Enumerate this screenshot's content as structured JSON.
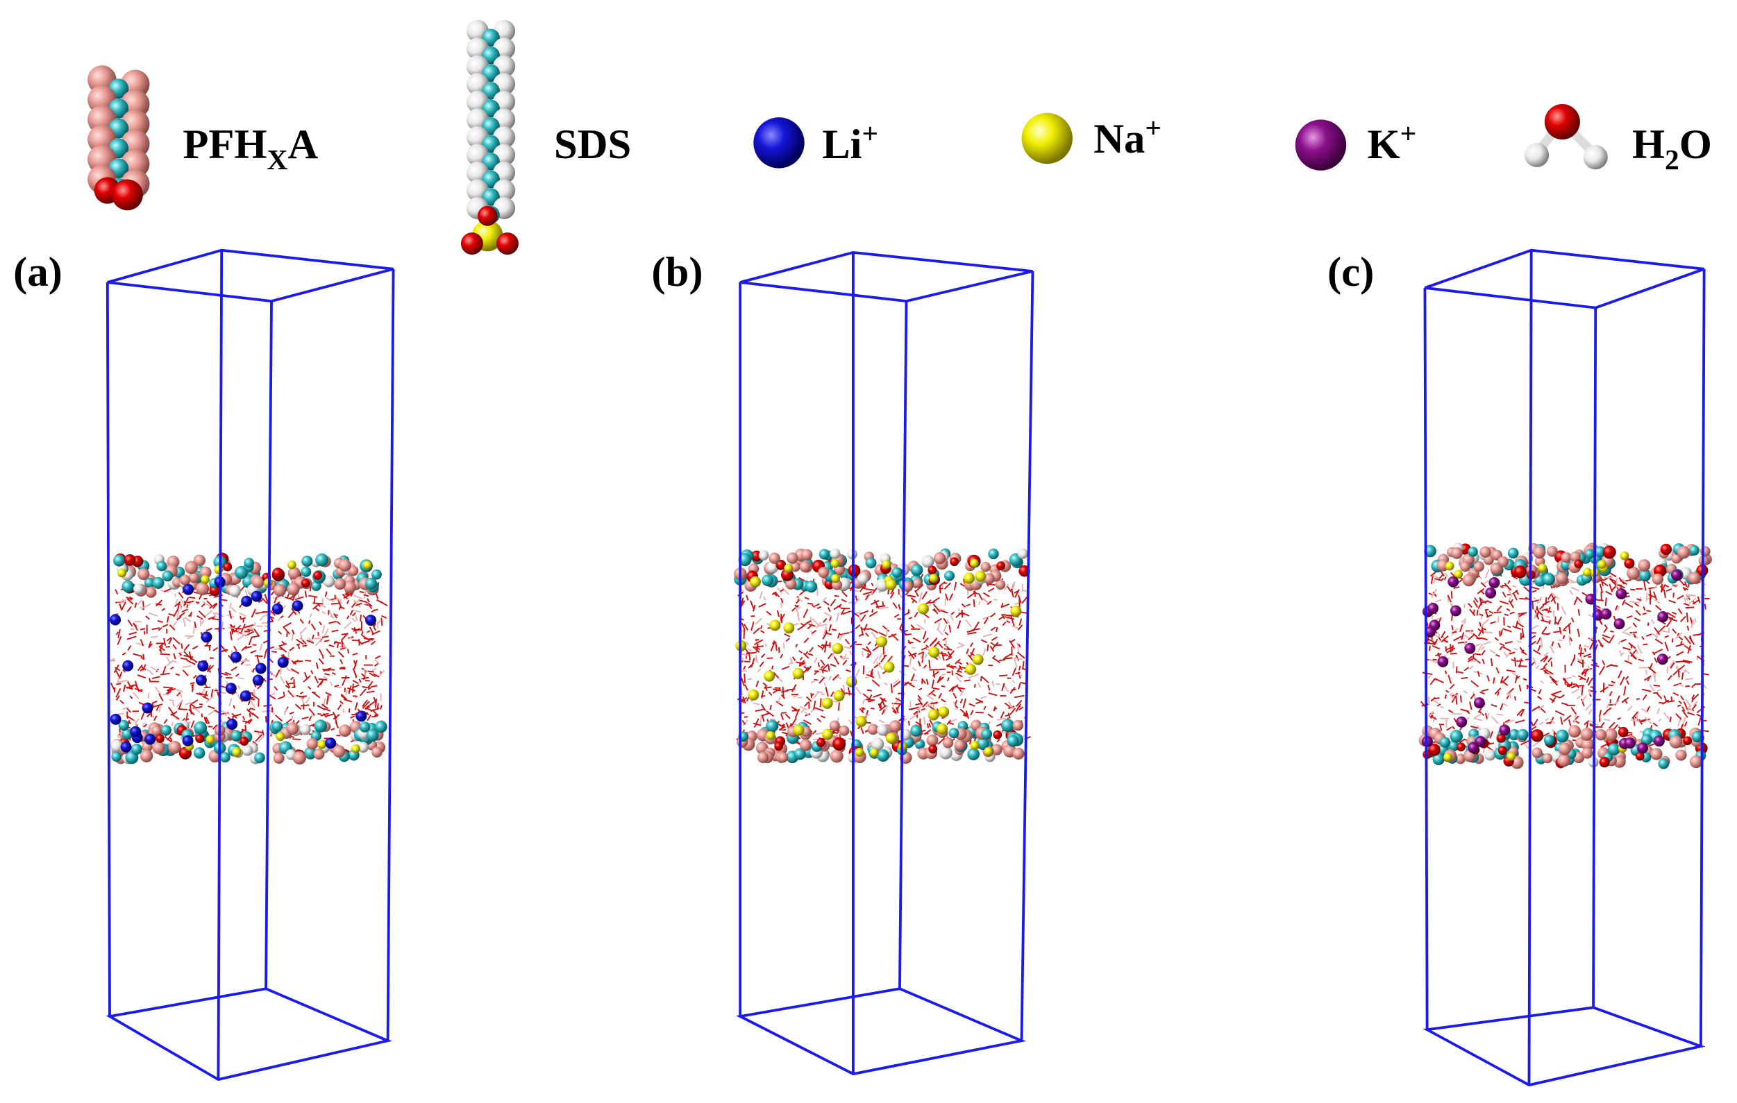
{
  "legend": [
    {
      "parts": [
        "PFH",
        "X",
        "A"
      ]
    },
    {
      "parts": [
        "SDS"
      ]
    },
    {
      "parts": [
        "Li",
        "+"
      ]
    },
    {
      "parts": [
        "Na",
        "+"
      ]
    },
    {
      "parts": [
        "K",
        "+"
      ]
    },
    {
      "parts": [
        "H",
        "2",
        "O"
      ]
    }
  ],
  "panels": [
    {
      "label": "(a)"
    },
    {
      "label": "(b)"
    },
    {
      "label": "(c)"
    }
  ]
}
